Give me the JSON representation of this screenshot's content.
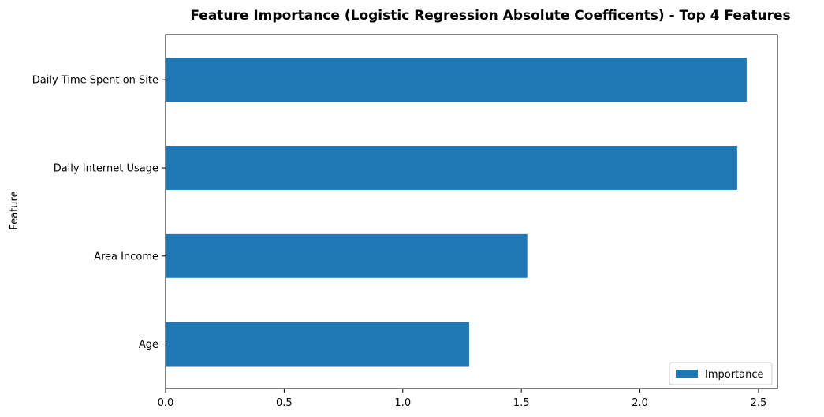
{
  "chart_data": {
    "type": "bar",
    "orientation": "horizontal",
    "title": "Feature Importance (Logistic Regression Absolute Coefficents) - Top 4 Features",
    "xlabel": "",
    "ylabel": "Feature",
    "categories": [
      "Age",
      "Area Income",
      "Daily Internet Usage",
      "Daily Time Spent on Site"
    ],
    "series": [
      {
        "name": "Importance",
        "values": [
          1.28,
          1.525,
          2.41,
          2.45
        ]
      }
    ],
    "xlim": [
      0,
      2.58
    ],
    "xticks": [
      {
        "value": 0.0,
        "label": "0.0"
      },
      {
        "value": 0.5,
        "label": "0.5"
      },
      {
        "value": 1.0,
        "label": "1.0"
      },
      {
        "value": 1.5,
        "label": "1.5"
      },
      {
        "value": 2.0,
        "label": "2.0"
      },
      {
        "value": 2.5,
        "label": "2.5"
      }
    ],
    "grid": false,
    "legend_position": "bottom-right",
    "bar_color": "#1f77b4"
  }
}
